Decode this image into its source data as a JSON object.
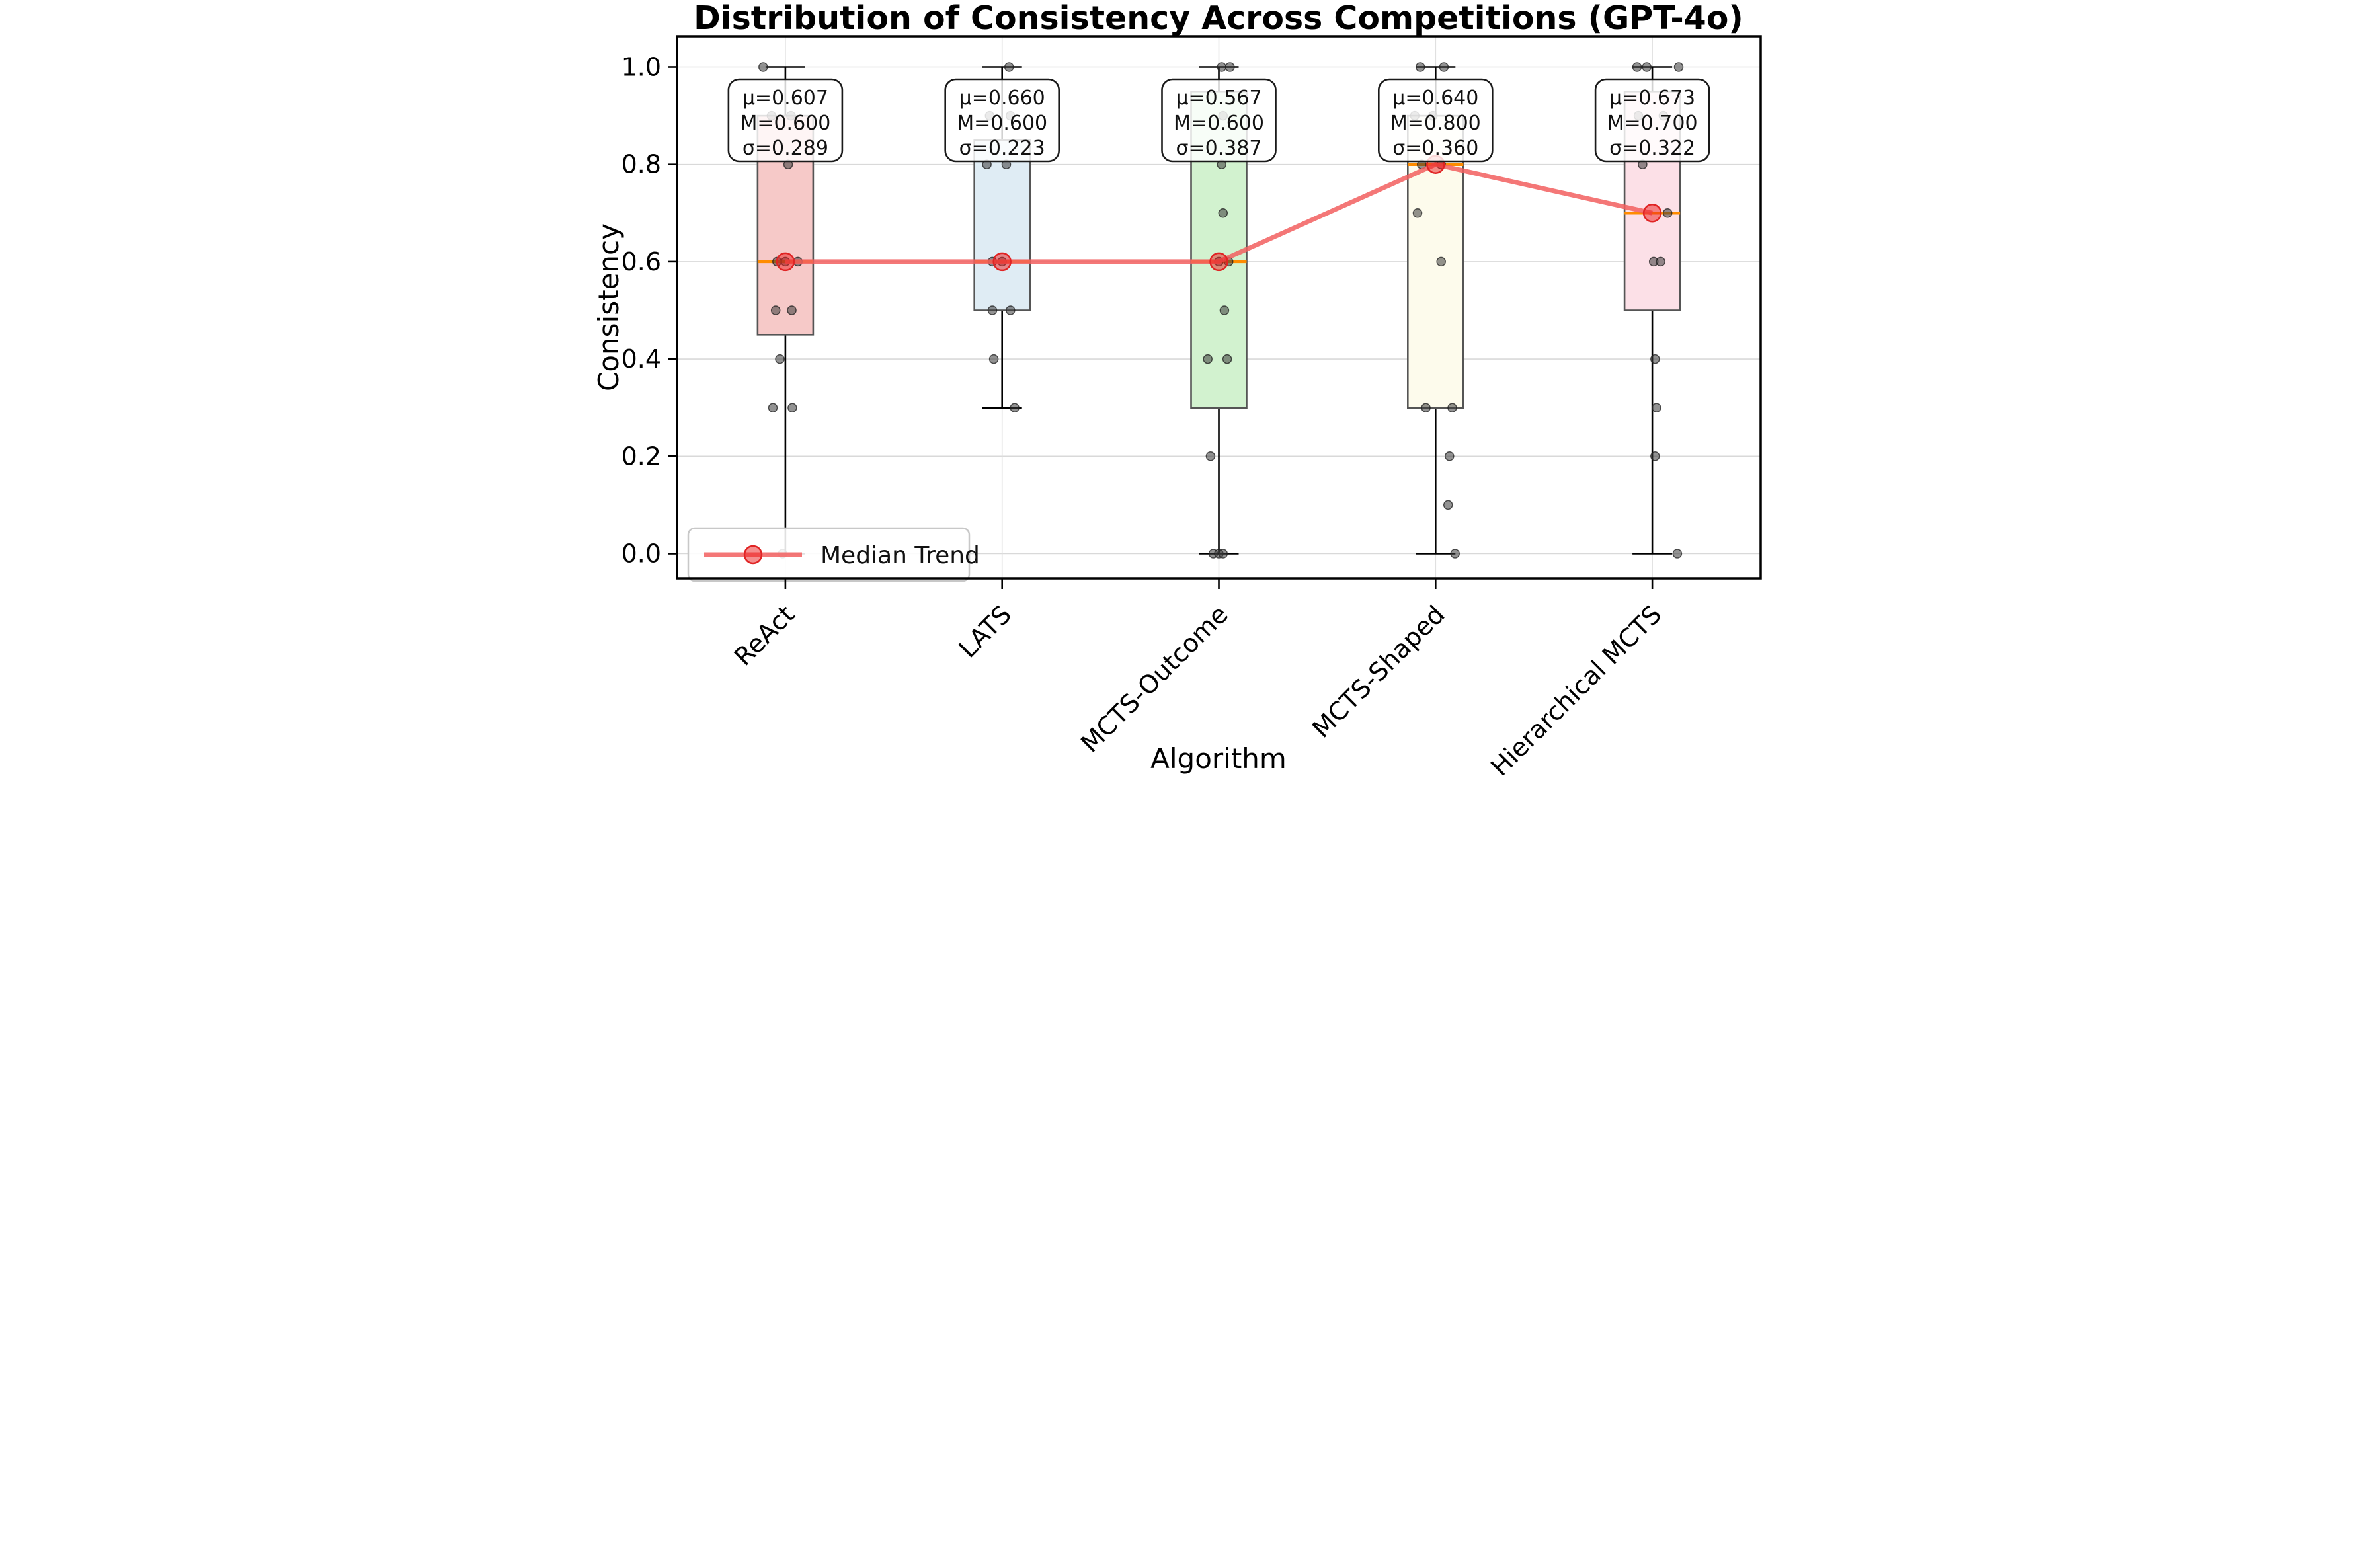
{
  "figure": {
    "title": "Distribution of Consistency Across Competitions (GPT-4o)",
    "xlabel": "Algorithm",
    "ylabel": "Consistency"
  },
  "chart_data": {
    "type": "box",
    "title": "Distribution of Consistency Across Competitions (GPT-4o)",
    "xlabel": "Algorithm",
    "ylabel": "Consistency",
    "ylim": [
      -0.05,
      1.06
    ],
    "yticks": [
      0.0,
      0.2,
      0.4,
      0.6,
      0.8,
      1.0
    ],
    "ytick_labels": [
      "0.0",
      "0.2",
      "0.4",
      "0.6",
      "0.8",
      "1.0"
    ],
    "grid": true,
    "legend_position": "lower-left",
    "categories": [
      "ReAct",
      "LATS",
      "MCTS-Outcome",
      "MCTS-Shaped",
      "Hierarchical MCTS"
    ],
    "median_color": "#ff8c00",
    "box_edge_color": "#555555",
    "whisker_color": "#000000",
    "point_color": "#3b3b3b",
    "boxes": [
      {
        "label": "ReAct",
        "fill": "#f6c9c8",
        "whisker_low": 0.0,
        "q1": 0.45,
        "median": 0.6,
        "q3": 0.9,
        "whisker_high": 1.0,
        "mean": 0.607,
        "std": 0.289,
        "annotation_lines": [
          "μ=0.607",
          "M=0.600",
          "σ=0.289"
        ],
        "points": [
          [
            1.0,
            -0.8
          ],
          [
            0.9,
            -0.5
          ],
          [
            0.9,
            0.2
          ],
          [
            0.8,
            0.1
          ],
          [
            0.6,
            -0.3
          ],
          [
            0.6,
            0.0
          ],
          [
            0.6,
            0.45
          ],
          [
            0.5,
            -0.35
          ],
          [
            0.5,
            0.23
          ],
          [
            0.4,
            -0.2
          ],
          [
            0.3,
            -0.45
          ],
          [
            0.3,
            0.25
          ],
          [
            0.0,
            -0.1
          ]
        ]
      },
      {
        "label": "LATS",
        "fill": "#dfecf4",
        "whisker_low": 0.3,
        "q1": 0.5,
        "median": 0.6,
        "q3": 0.85,
        "whisker_high": 1.0,
        "mean": 0.66,
        "std": 0.223,
        "annotation_lines": [
          "μ=0.660",
          "M=0.600",
          "σ=0.223"
        ],
        "points": [
          [
            1.0,
            0.25
          ],
          [
            0.9,
            -0.45
          ],
          [
            0.9,
            0.3
          ],
          [
            0.8,
            -0.55
          ],
          [
            0.8,
            0.15
          ],
          [
            0.6,
            -0.35
          ],
          [
            0.6,
            0.0
          ],
          [
            0.5,
            -0.35
          ],
          [
            0.5,
            0.3
          ],
          [
            0.4,
            -0.3
          ],
          [
            0.3,
            0.45
          ]
        ]
      },
      {
        "label": "MCTS-Outcome",
        "fill": "#d2f2cf",
        "whisker_low": 0.0,
        "q1": 0.3,
        "median": 0.6,
        "q3": 0.95,
        "whisker_high": 1.0,
        "mean": 0.567,
        "std": 0.387,
        "annotation_lines": [
          "μ=0.567",
          "M=0.600",
          "σ=0.387"
        ],
        "points": [
          [
            1.0,
            0.1
          ],
          [
            1.0,
            0.4
          ],
          [
            0.9,
            0.15
          ],
          [
            0.8,
            0.1
          ],
          [
            0.7,
            0.15
          ],
          [
            0.6,
            0.0
          ],
          [
            0.6,
            0.35
          ],
          [
            0.5,
            0.2
          ],
          [
            0.4,
            -0.4
          ],
          [
            0.4,
            0.3
          ],
          [
            0.2,
            -0.3
          ],
          [
            0.0,
            -0.2
          ],
          [
            0.0,
            0.0
          ],
          [
            0.0,
            0.15
          ]
        ]
      },
      {
        "label": "MCTS-Shaped",
        "fill": "#fdfbec",
        "whisker_low": 0.0,
        "q1": 0.3,
        "median": 0.8,
        "q3": 0.9,
        "whisker_high": 1.0,
        "mean": 0.64,
        "std": 0.36,
        "annotation_lines": [
          "μ=0.640",
          "M=0.800",
          "σ=0.360"
        ],
        "points": [
          [
            1.0,
            -0.55
          ],
          [
            1.0,
            0.3
          ],
          [
            0.9,
            -0.75
          ],
          [
            0.9,
            -0.1
          ],
          [
            0.8,
            -0.5
          ],
          [
            0.8,
            0.2
          ],
          [
            0.7,
            -0.65
          ],
          [
            0.6,
            0.2
          ],
          [
            0.3,
            -0.35
          ],
          [
            0.3,
            0.6
          ],
          [
            0.2,
            0.5
          ],
          [
            0.1,
            0.45
          ],
          [
            0.0,
            0.7
          ]
        ]
      },
      {
        "label": "Hierarchical MCTS",
        "fill": "#fce0e7",
        "whisker_low": 0.0,
        "q1": 0.5,
        "median": 0.7,
        "q3": 0.95,
        "whisker_high": 1.0,
        "mean": 0.673,
        "std": 0.322,
        "annotation_lines": [
          "μ=0.673",
          "M=0.700",
          "σ=0.322"
        ],
        "points": [
          [
            1.0,
            -0.55
          ],
          [
            1.0,
            -0.2
          ],
          [
            1.0,
            0.95
          ],
          [
            0.9,
            -0.5
          ],
          [
            0.9,
            0.4
          ],
          [
            0.8,
            -0.35
          ],
          [
            0.7,
            0.55
          ],
          [
            0.6,
            0.05
          ],
          [
            0.6,
            0.3
          ],
          [
            0.4,
            0.1
          ],
          [
            0.3,
            0.15
          ],
          [
            0.2,
            0.1
          ],
          [
            0.0,
            0.9
          ]
        ]
      }
    ],
    "trend": {
      "label": "Median Trend",
      "color": "#f25f5f",
      "marker_fill": "rgba(235,30,30,0.5)",
      "marker_edge": "#e02424",
      "values": [
        0.6,
        0.6,
        0.6,
        0.8,
        0.7
      ]
    }
  }
}
